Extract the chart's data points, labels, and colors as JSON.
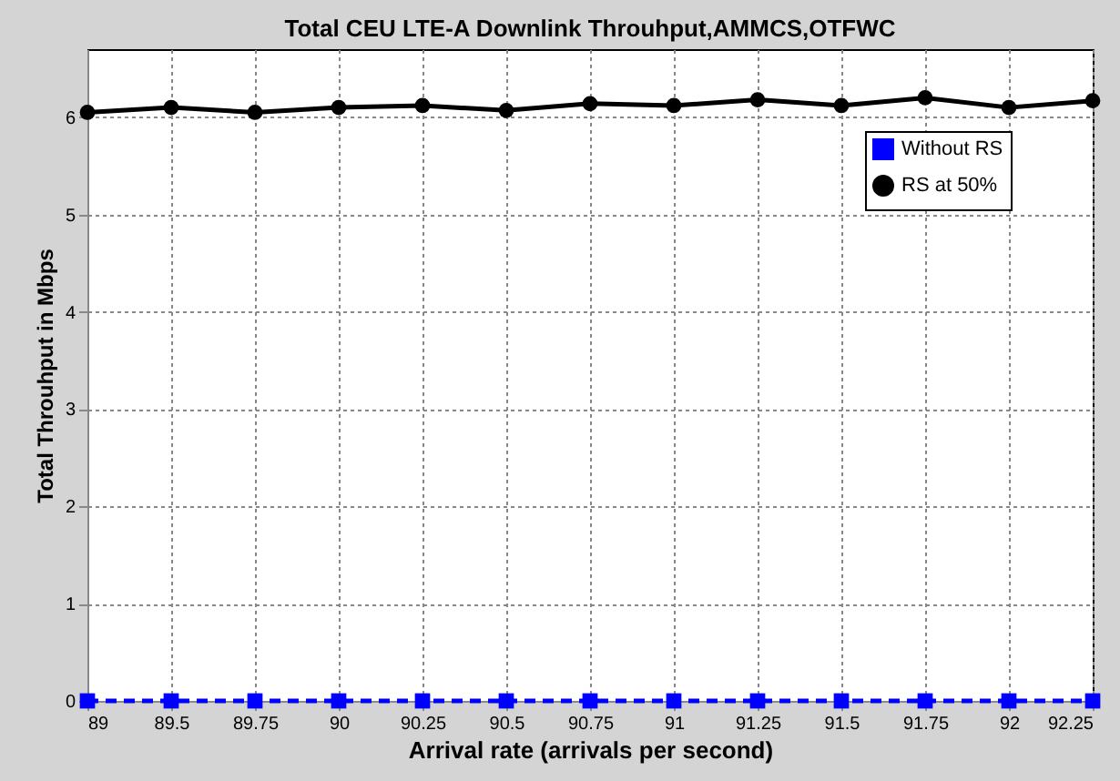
{
  "chart_data": {
    "type": "line",
    "title": "Total CEU LTE-A Downlink Throuhput,AMMCS,OTFWC",
    "xlabel": "Arrival rate (arrivals per second)",
    "ylabel": "Total Throuhput in Mbps",
    "categories": [
      "89",
      "89.5",
      "89.75",
      "90",
      "90.25",
      "90.5",
      "90.75",
      "91",
      "91.25",
      "91.5",
      "91.75",
      "92",
      "92.25"
    ],
    "series": [
      {
        "name": "Without RS",
        "color": "#0000ff",
        "marker": "square",
        "line_style": "dashed",
        "values": [
          0,
          0,
          0,
          0,
          0,
          0,
          0,
          0,
          0,
          0,
          0,
          0,
          0
        ]
      },
      {
        "name": "RS at 50%",
        "color": "#000000",
        "marker": "circle",
        "line_style": "solid",
        "values": [
          6.05,
          6.1,
          6.05,
          6.1,
          6.12,
          6.07,
          6.14,
          6.12,
          6.18,
          6.12,
          6.2,
          6.1,
          6.17
        ]
      }
    ],
    "ylim": [
      0,
      6.7
    ],
    "yticks": [
      0,
      1,
      2,
      3,
      4,
      5,
      6
    ],
    "grid": true,
    "legend": "top right"
  }
}
